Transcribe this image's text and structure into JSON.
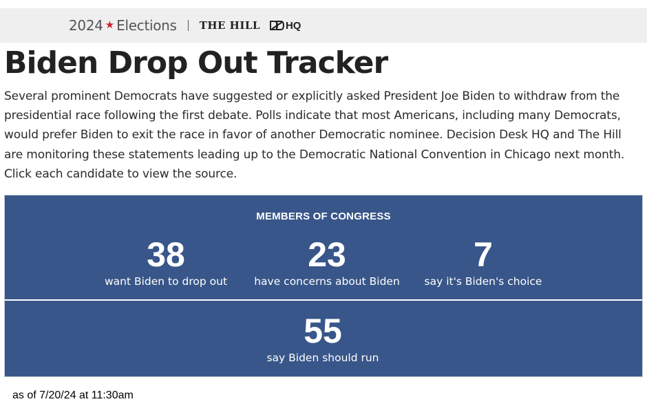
{
  "header": {
    "year": "2024",
    "section": "Elections",
    "partner_1": "THE HILL",
    "partner_2": "HQ",
    "colors": {
      "background": "#efefef",
      "star": "#c8202f"
    },
    "icons": [
      "star-icon",
      "ddhq-logo-icon"
    ]
  },
  "page": {
    "title": "Biden Drop Out Tracker",
    "intro": "Several prominent Democrats have suggested or explicitly asked President Joe Biden to withdraw from the presidential race following the first debate. Polls indicate that most Americans, including many Democrats, would prefer Biden to exit the race in favor of another Democratic nominee. Decision Desk HQ and The Hill are monitoring these statements leading up to the Democratic National Convention in Chicago next month. Click each candidate to view the source."
  },
  "tracker": {
    "heading": "MEMBERS OF CONGRESS",
    "colors": {
      "panel": "#385689",
      "text": "#ffffff"
    },
    "stats": [
      {
        "value": "38",
        "label": "want Biden to drop out"
      },
      {
        "value": "23",
        "label": "have concerns about Biden"
      },
      {
        "value": "7",
        "label": "say it's Biden's choice"
      },
      {
        "value": "55",
        "label": "say Biden should run"
      }
    ]
  },
  "footer": {
    "timestamp": "as of 7/20/24 at 11:30am"
  }
}
